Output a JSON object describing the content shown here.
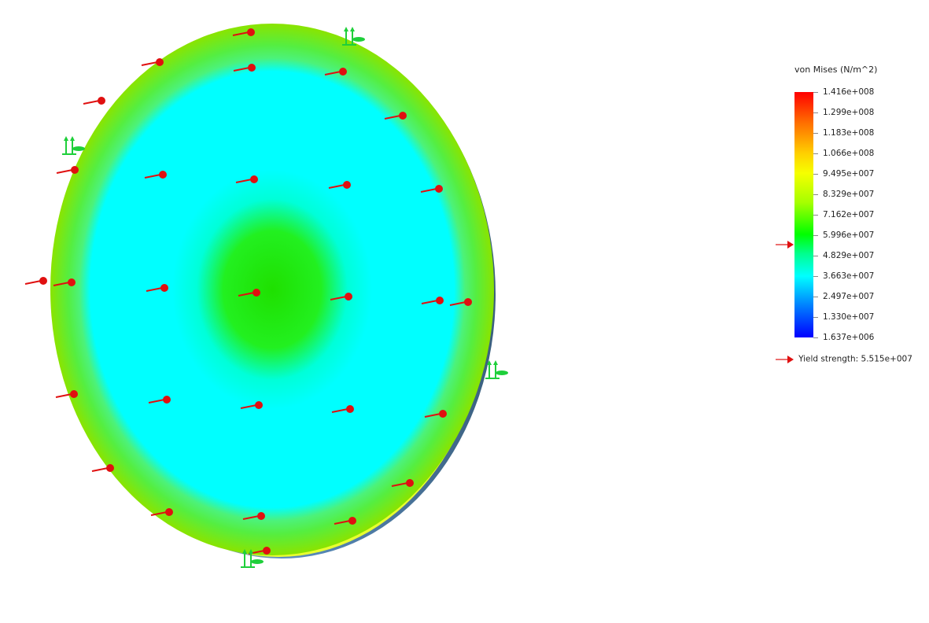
{
  "legend": {
    "title": "von Mises (N/m^2)",
    "ticks": [
      "1.416e+008",
      "1.299e+008",
      "1.183e+008",
      "1.066e+008",
      "9.495e+007",
      "8.329e+007",
      "7.162e+007",
      "5.996e+007",
      "4.829e+007",
      "3.663e+007",
      "2.497e+007",
      "1.330e+007",
      "1.637e+006"
    ],
    "yield_label": "Yield strength: 5.515e+007",
    "yield_value": 55150000,
    "colors": {
      "max": "#ff0000",
      "mid": "#00ff00",
      "low": "#00ffff",
      "min": "#0000ff",
      "load_arrow": "#e01010",
      "fixture": "#1ecf3a"
    }
  },
  "model": {
    "icons": [
      "pressure-load-arrow",
      "fixture-arrow"
    ]
  }
}
